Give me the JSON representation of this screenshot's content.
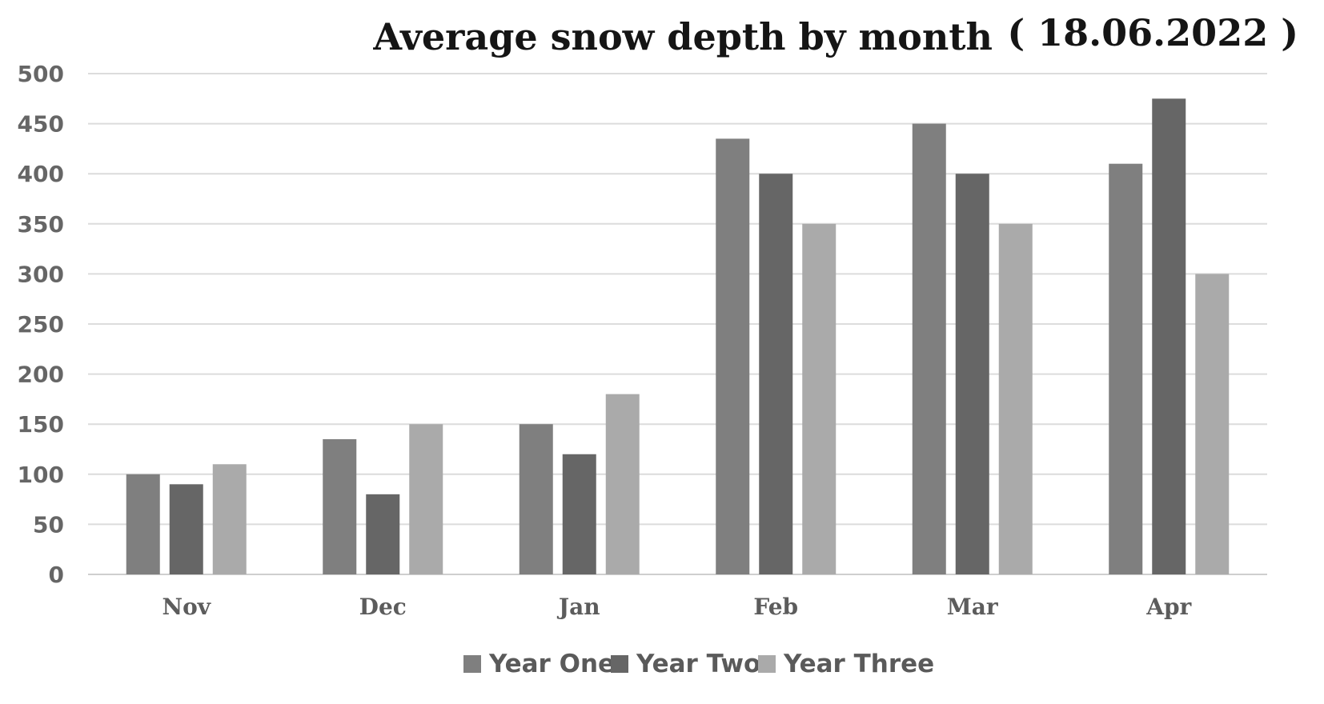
{
  "chart_data": {
    "type": "bar",
    "title": "Average snow depth by month",
    "subtitle": "( 18.06.2022 )",
    "xlabel": "",
    "ylabel": "",
    "categories": [
      "Nov",
      "Dec",
      "Jan",
      "Feb",
      "Mar",
      "Apr"
    ],
    "series": [
      {
        "name": "Year One",
        "color": "#7f7f7f",
        "values": [
          100,
          135,
          150,
          435,
          450,
          410
        ]
      },
      {
        "name": "Year Two",
        "color": "#666666",
        "values": [
          90,
          80,
          120,
          400,
          400,
          475
        ]
      },
      {
        "name": "Year Three",
        "color": "#aaaaaa",
        "values": [
          110,
          150,
          180,
          350,
          350,
          300
        ]
      }
    ],
    "ylim": [
      0,
      500
    ],
    "yticks": [
      "0",
      "50",
      "100",
      "150",
      "200",
      "250",
      "300",
      "350",
      "400",
      "450",
      "500"
    ],
    "grid": true,
    "legend_position": "bottom"
  }
}
